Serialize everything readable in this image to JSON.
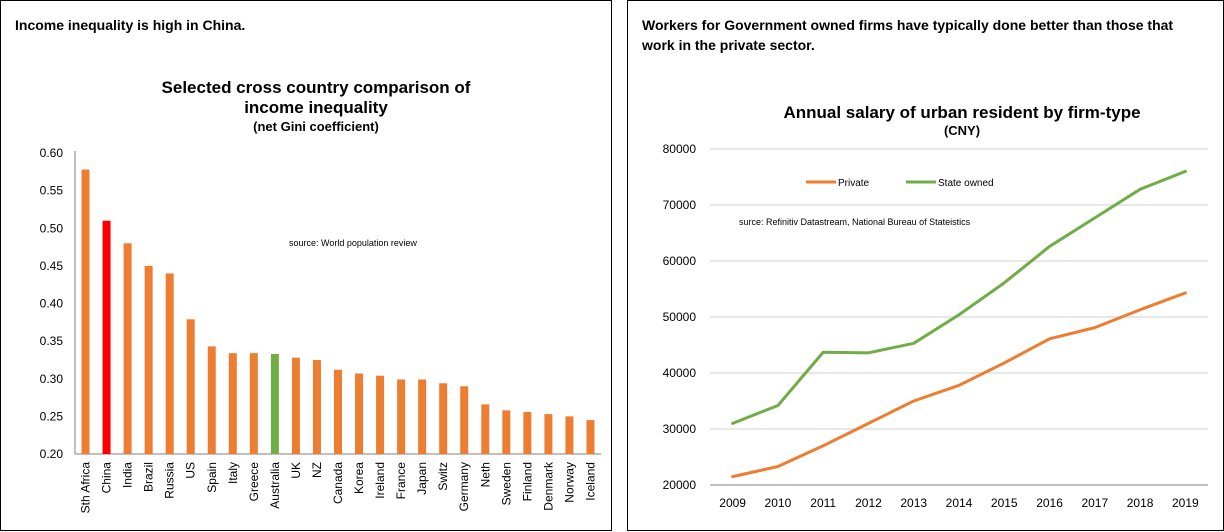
{
  "panels": {
    "left": {
      "caption": "Income inequality is high in China."
    },
    "right": {
      "caption": "Workers for Government owned firms have typically done better than those that work in the private sector."
    }
  },
  "chart_data": [
    {
      "type": "bar",
      "title": "Selected cross country comparison of income inequality",
      "subtitle": "(net Gini coefficient)",
      "source_note": "source:  World population review",
      "ylim": [
        0.2,
        0.6
      ],
      "yticks": [
        "0.20",
        "0.25",
        "0.30",
        "0.35",
        "0.40",
        "0.45",
        "0.50",
        "0.55",
        "0.60"
      ],
      "grid": false,
      "categories": [
        "Sth Africa",
        "China",
        "India",
        "Brazil",
        "Russia",
        "US",
        "Spain",
        "Italy",
        "Greece",
        "Australia",
        "UK",
        "NZ",
        "Canada",
        "Korea",
        "Ireland",
        "France",
        "Japan",
        "Switz",
        "Germany",
        "Neth",
        "Sweden",
        "Finland",
        "Denmark",
        "Norway",
        "Iceland"
      ],
      "values": [
        0.578,
        0.51,
        0.48,
        0.45,
        0.44,
        0.379,
        0.343,
        0.334,
        0.334,
        0.333,
        0.328,
        0.325,
        0.312,
        0.307,
        0.304,
        0.299,
        0.299,
        0.294,
        0.29,
        0.266,
        0.258,
        0.256,
        0.253,
        0.25,
        0.245
      ],
      "colors": {
        "default": "#ed7d31",
        "China": "#ff0000",
        "Australia": "#70ad47"
      }
    },
    {
      "type": "line",
      "title": "Annual salary of urban resident by firm-type",
      "subtitle": "(CNY)",
      "source_note": "surce:  Refinitiv Datastream, National Bureau of Stateistics",
      "x": [
        "2009",
        "2010",
        "2011",
        "2012",
        "2013",
        "2014",
        "2015",
        "2016",
        "2017",
        "2018",
        "2019"
      ],
      "ylim": [
        20000,
        80000
      ],
      "yticks": [
        "20000",
        "30000",
        "40000",
        "50000",
        "60000",
        "70000",
        "80000"
      ],
      "grid": true,
      "legend": "top",
      "series": [
        {
          "name": "Private",
          "color": "#ed7d31",
          "values": [
            21500,
            23300,
            27000,
            31000,
            35000,
            37800,
            41800,
            46100,
            48100,
            51300,
            54300
          ]
        },
        {
          "name": "State owned",
          "color": "#70ad47",
          "values": [
            31000,
            34200,
            43700,
            43600,
            45300,
            50400,
            56100,
            62600,
            67700,
            72800,
            76000
          ]
        }
      ]
    }
  ]
}
